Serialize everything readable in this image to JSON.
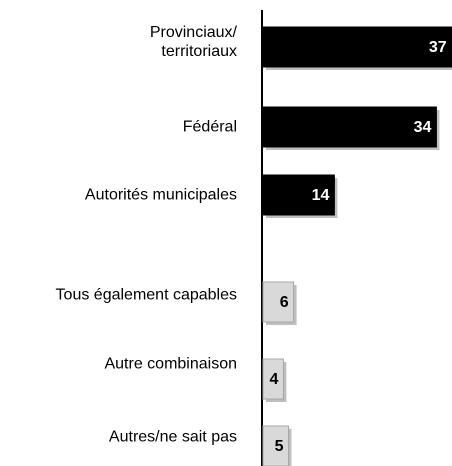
{
  "chart_data": {
    "type": "barh",
    "categories": [
      "Provinciaux/\nterritoriaux",
      "Fédéral",
      "Autorités municipales",
      "Tous également capables",
      "Autre combinaison",
      "Autres/ne sait pas"
    ],
    "values": [
      37,
      34,
      14,
      6,
      4,
      5
    ],
    "colors": [
      "#000000",
      "#000000",
      "#000000",
      "#d9d9d9",
      "#d9d9d9",
      "#d9d9d9"
    ]
  }
}
